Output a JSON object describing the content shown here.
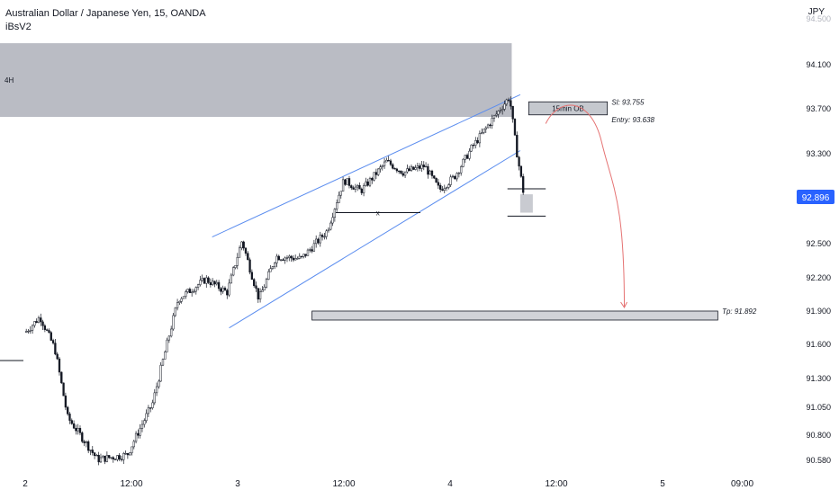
{
  "header": {
    "symbol_title": "Australian Dollar / Japanese Yen, 15, OANDA",
    "indicator": "iBsV2",
    "currency": "JPY"
  },
  "colors": {
    "background": "#ffffff",
    "candle": "#131722",
    "channel": "#5b8def",
    "zone_fill": "#b2b5be",
    "price_label_bg": "#2962ff",
    "projection": "#e57373"
  },
  "chart_data": {
    "type": "candlestick",
    "instrument": "AUD/JPY",
    "timeframe": "15",
    "source": "OANDA",
    "current_price": 92.896,
    "y_ticks": [
      94.5,
      94.1,
      93.7,
      93.3,
      92.896,
      92.5,
      92.2,
      91.9,
      91.6,
      91.3,
      91.05,
      90.8,
      90.58
    ],
    "y_tick_labels": [
      "94.500",
      "94.100",
      "93.700",
      "93.300",
      "92.896",
      "92.500",
      "92.200",
      "91.900",
      "91.600",
      "91.300",
      "91.050",
      "90.800",
      "90.580"
    ],
    "x_tick_labels": [
      "2",
      "12:00",
      "3",
      "12:00",
      "4",
      "12:00",
      "5",
      "09:00"
    ],
    "htf_zone": {
      "label": "4H",
      "from": 93.62,
      "to": 94.28
    },
    "order_block": {
      "label": "15min OB",
      "top": 93.755,
      "bottom": 93.638
    },
    "levels": [
      {
        "label": "Sl: 93.755",
        "price": 93.755
      },
      {
        "label": "Entry: 93.638",
        "price": 93.638
      },
      {
        "label": "Tp: 91.892",
        "price": 91.892
      }
    ],
    "annotations": [
      "x"
    ],
    "price_path": [
      {
        "x": 0.0,
        "y": 91.7
      },
      {
        "x": 0.07,
        "y": 91.84
      },
      {
        "x": 0.14,
        "y": 91.55
      },
      {
        "x": 0.2,
        "y": 90.95
      },
      {
        "x": 0.34,
        "y": 90.58
      },
      {
        "x": 0.48,
        "y": 90.62
      },
      {
        "x": 0.6,
        "y": 91.08
      },
      {
        "x": 0.72,
        "y": 92.0
      },
      {
        "x": 0.85,
        "y": 92.18
      },
      {
        "x": 0.95,
        "y": 92.06
      },
      {
        "x": 1.02,
        "y": 92.52
      },
      {
        "x": 1.1,
        "y": 92.0
      },
      {
        "x": 1.18,
        "y": 92.38
      },
      {
        "x": 1.3,
        "y": 92.36
      },
      {
        "x": 1.42,
        "y": 92.6
      },
      {
        "x": 1.5,
        "y": 93.05
      },
      {
        "x": 1.58,
        "y": 92.95
      },
      {
        "x": 1.7,
        "y": 93.22
      },
      {
        "x": 1.78,
        "y": 93.12
      },
      {
        "x": 1.88,
        "y": 93.18
      },
      {
        "x": 1.95,
        "y": 92.96
      },
      {
        "x": 2.02,
        "y": 93.08
      },
      {
        "x": 2.1,
        "y": 93.34
      },
      {
        "x": 2.2,
        "y": 93.6
      },
      {
        "x": 2.28,
        "y": 93.8
      },
      {
        "x": 2.31,
        "y": 93.35
      },
      {
        "x": 2.35,
        "y": 92.88
      }
    ]
  }
}
